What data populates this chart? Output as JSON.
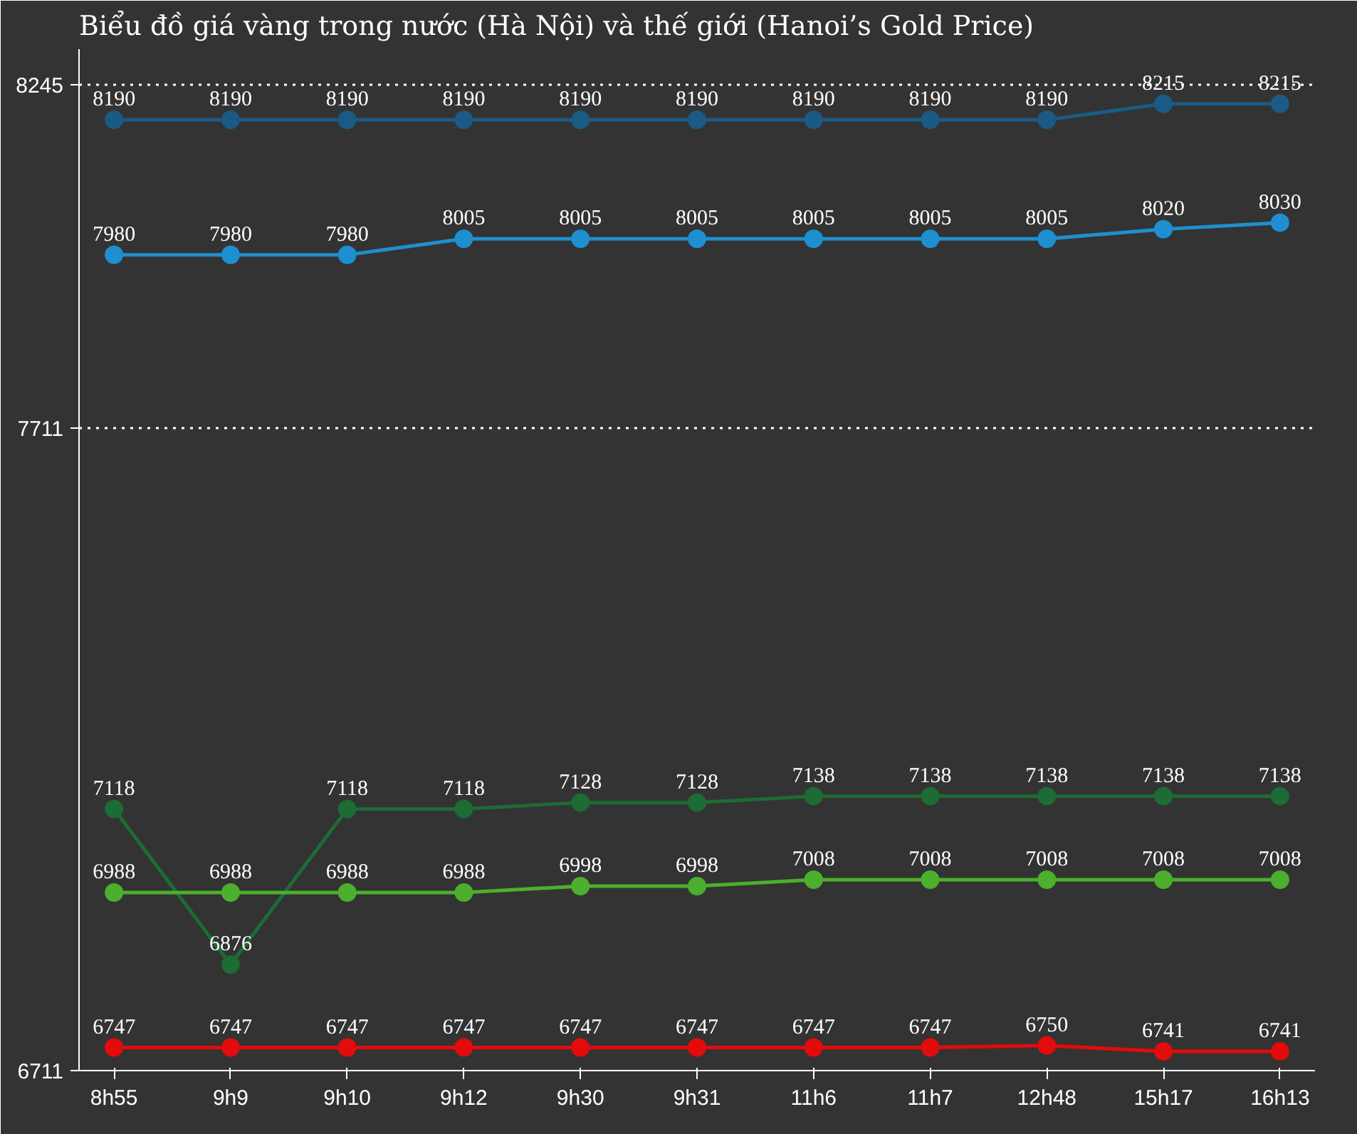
{
  "chart_data": {
    "type": "line",
    "title": "Biểu đồ giá vàng trong nước (Hà Nội) và thế giới (Hanoi’s Gold Price)",
    "categories": [
      "8h55",
      "9h9",
      "9h10",
      "9h12",
      "9h30",
      "9h31",
      "11h6",
      "11h7",
      "12h48",
      "15h17",
      "16h13"
    ],
    "series": [
      {
        "color": "#1b5a85",
        "values": [
          8190,
          8190,
          8190,
          8190,
          8190,
          8190,
          8190,
          8190,
          8190,
          8215,
          8215
        ]
      },
      {
        "color": "#1e8fd0",
        "values": [
          7980,
          7980,
          7980,
          8005,
          8005,
          8005,
          8005,
          8005,
          8005,
          8020,
          8030
        ]
      },
      {
        "color": "#1d6b35",
        "values": [
          7118,
          6876,
          7118,
          7118,
          7128,
          7128,
          7138,
          7138,
          7138,
          7138,
          7138
        ]
      },
      {
        "color": "#4caf2e",
        "values": [
          6988,
          6988,
          6988,
          6988,
          6998,
          6998,
          7008,
          7008,
          7008,
          7008,
          7008
        ]
      },
      {
        "color": "#e30b0b",
        "values": [
          6747,
          6747,
          6747,
          6747,
          6747,
          6747,
          6747,
          6747,
          6750,
          6741,
          6741
        ]
      }
    ],
    "ylim": [
      6711,
      8300
    ],
    "yticks": [
      6711,
      7711,
      8245
    ],
    "grid": "y",
    "marker": "circle",
    "line_style": "solid",
    "data_labels": true
  }
}
